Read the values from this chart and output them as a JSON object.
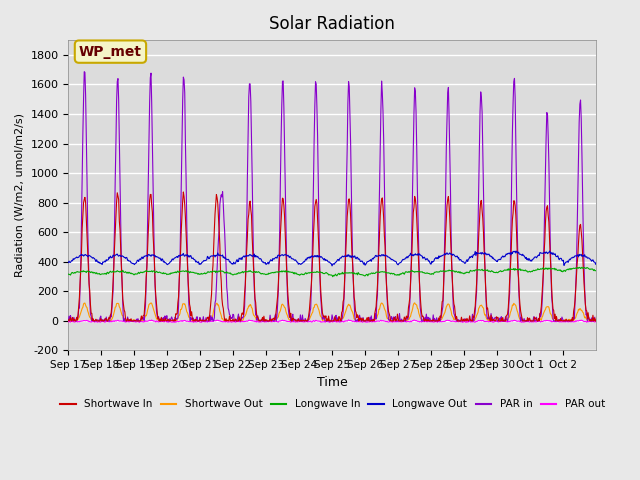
{
  "title": "Solar Radiation",
  "ylabel": "Radiation (W/m2, umol/m2/s)",
  "xlabel": "Time",
  "ylim": [
    -200,
    1900
  ],
  "yticks": [
    -200,
    0,
    200,
    400,
    600,
    800,
    1000,
    1200,
    1400,
    1600,
    1800
  ],
  "x_labels": [
    "Sep 17",
    "Sep 18",
    "Sep 19",
    "Sep 20",
    "Sep 21",
    "Sep 22",
    "Sep 23",
    "Sep 24",
    "Sep 25",
    "Sep 26",
    "Sep 27",
    "Sep 28",
    "Sep 29",
    "Sep 30",
    "Oct 1",
    "Oct 2"
  ],
  "background_color": "#e8e8e8",
  "axes_bg_color": "#dcdcdc",
  "grid_color": "#ffffff",
  "annotation_text": "WP_met",
  "annotation_bg": "#f5f5c8",
  "annotation_border": "#c8a800",
  "series": {
    "shortwave_in": {
      "color": "#cc0000",
      "label": "Shortwave In"
    },
    "shortwave_out": {
      "color": "#ff9900",
      "label": "Shortwave Out"
    },
    "longwave_in": {
      "color": "#00aa00",
      "label": "Longwave In"
    },
    "longwave_out": {
      "color": "#0000cc",
      "label": "Longwave Out"
    },
    "par_in": {
      "color": "#8800cc",
      "label": "PAR in"
    },
    "par_out": {
      "color": "#ff00ff",
      "label": "PAR out"
    }
  }
}
